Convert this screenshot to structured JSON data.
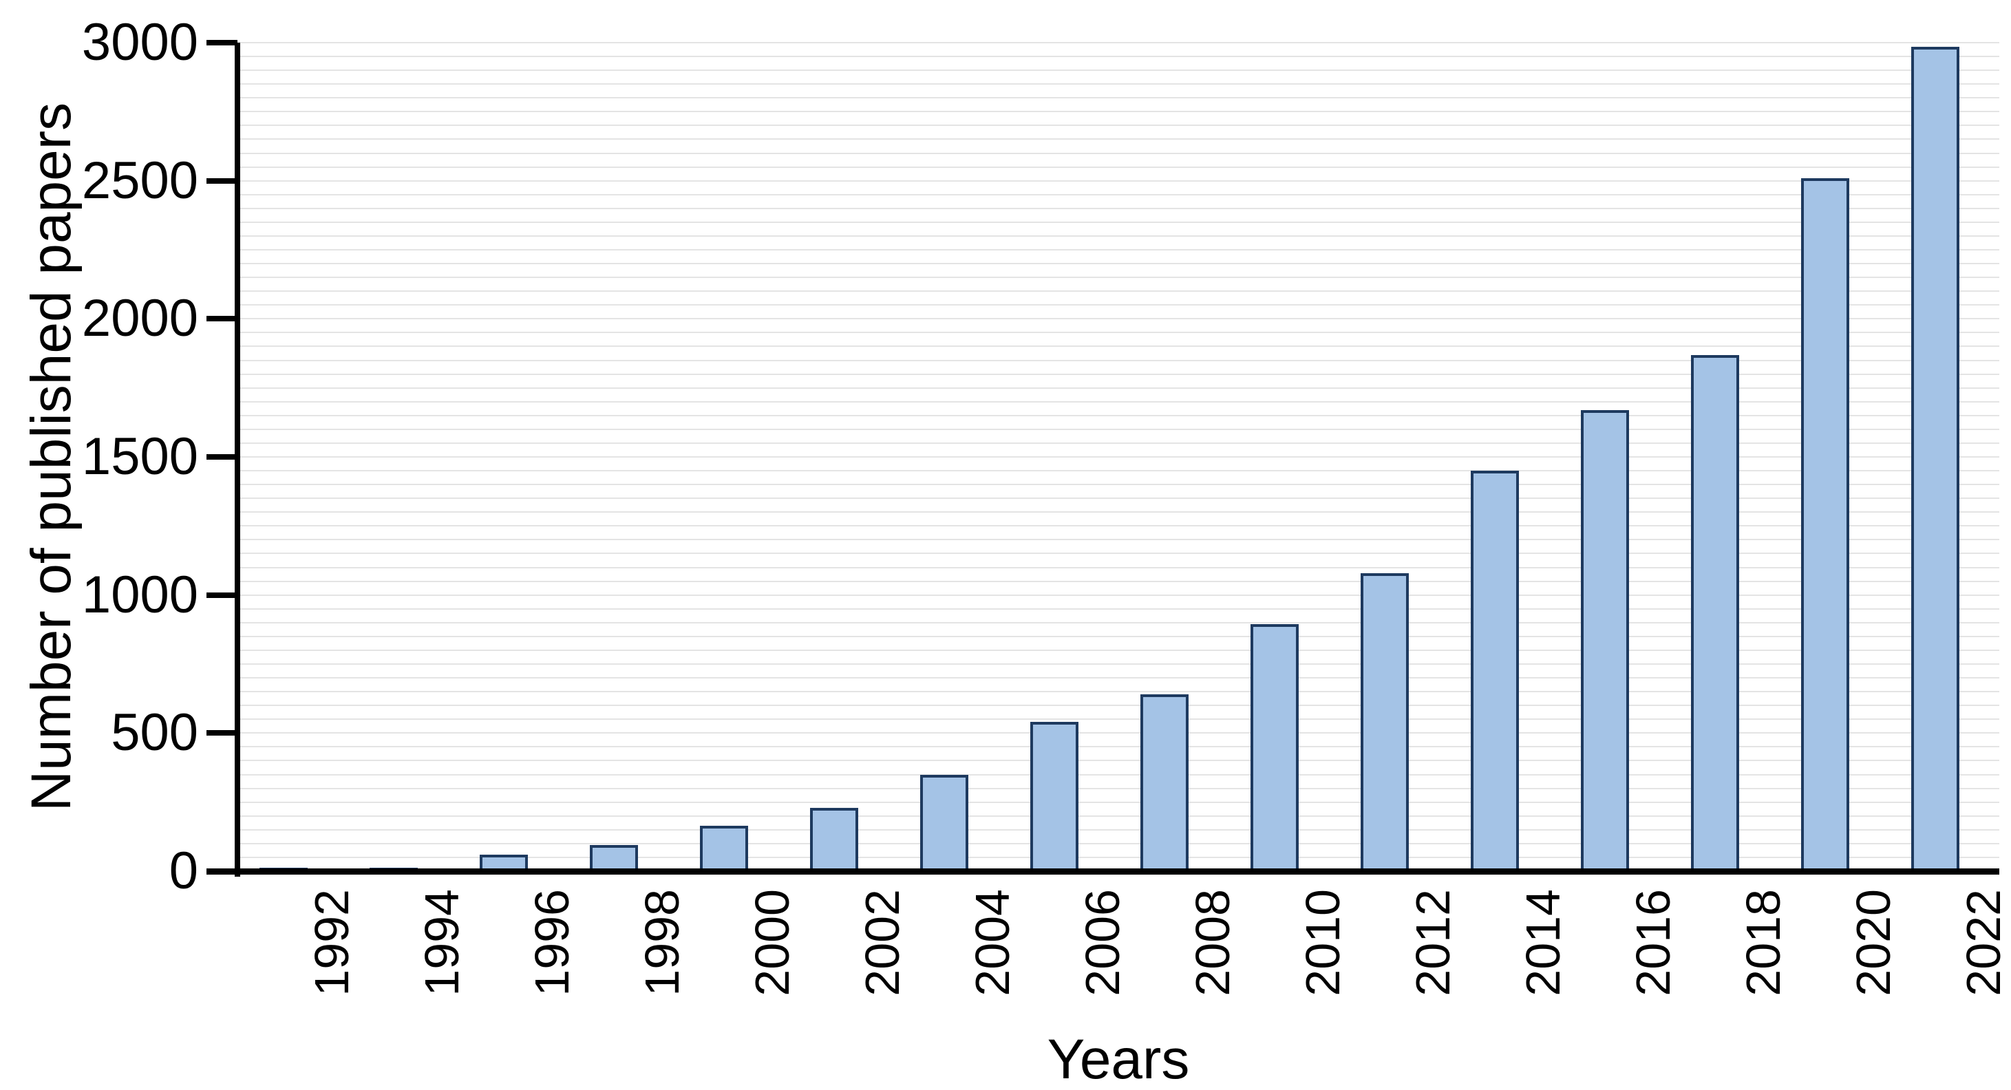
{
  "chart_data": {
    "type": "bar",
    "title": "",
    "xlabel": "Years",
    "ylabel": "Number of published papers",
    "categories": [
      "1992",
      "1994",
      "1996",
      "1998",
      "2000",
      "2002",
      "2004",
      "2006",
      "2008",
      "2010",
      "2012",
      "2014",
      "2016",
      "2018",
      "2020",
      "2022"
    ],
    "values": [
      10,
      10,
      60,
      95,
      165,
      230,
      350,
      540,
      640,
      895,
      1080,
      1450,
      1670,
      1870,
      2510,
      2985
    ],
    "ylim": [
      0,
      3000
    ],
    "ytick_step": 500,
    "ytick_labels": [
      "0",
      "500",
      "1000",
      "1500",
      "2000",
      "2500",
      "3000"
    ],
    "minor_grid_step": 50,
    "grid": "horizontal-minor-lines",
    "legend": "none",
    "bar_border_width_px": 4,
    "colors": {
      "background": "#FFFFFF",
      "bar_fill": "#A4C3E6",
      "bar_border": "#1E3A5F",
      "grid_color": "#E4E4E4",
      "axis_color": "#000000",
      "text_color": "#000000"
    }
  }
}
